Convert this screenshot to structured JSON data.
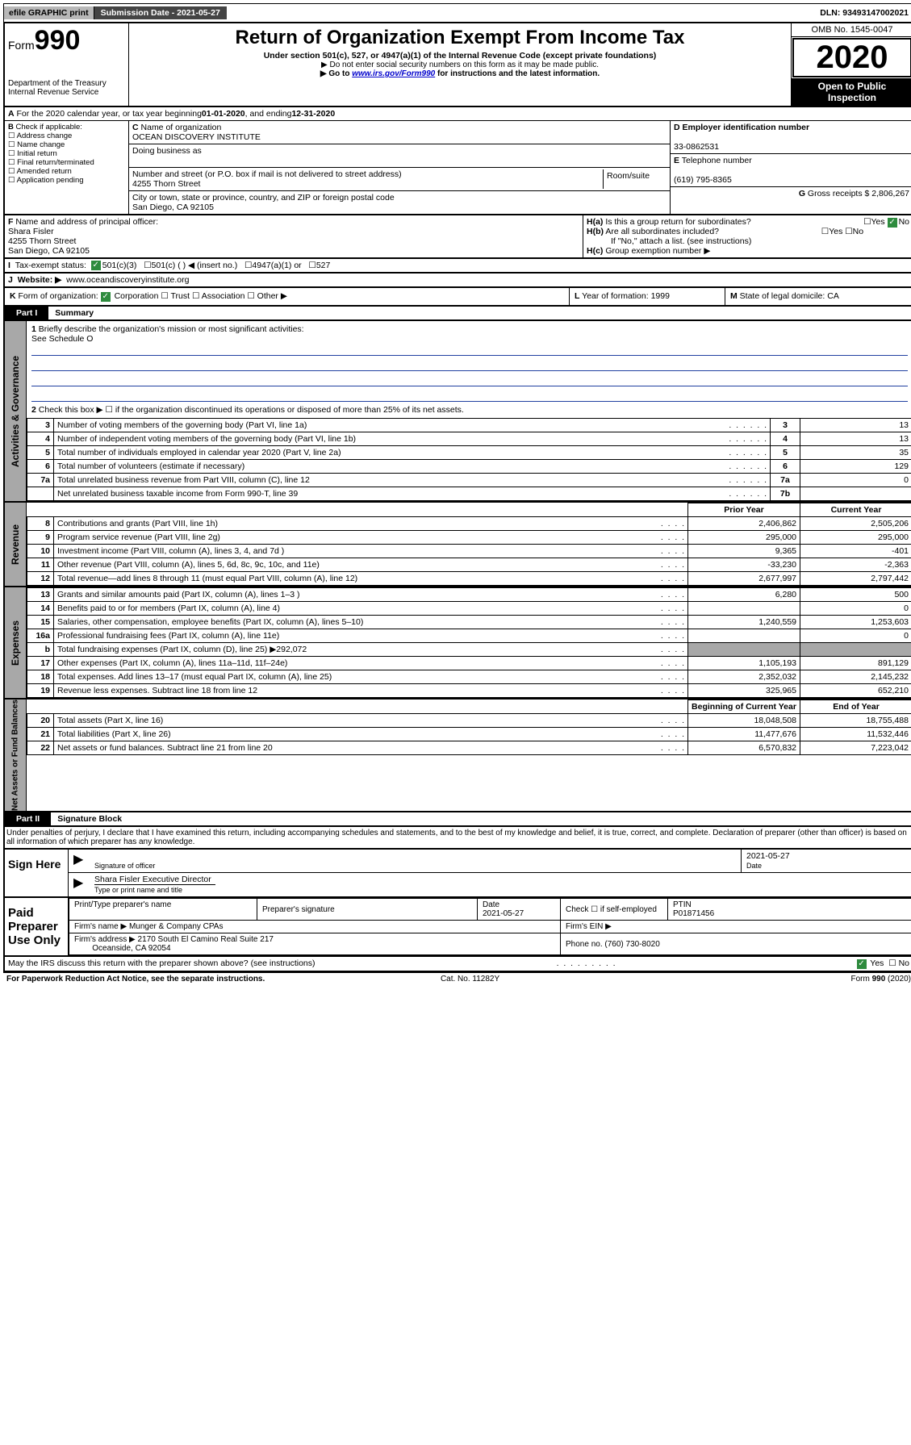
{
  "topbar": {
    "efile": "efile GRAPHIC print",
    "subdate_label": "Submission Date - 2021-05-27",
    "dln": "DLN: 93493147002021"
  },
  "header": {
    "form_label": "Form",
    "form_num": "990",
    "dept": "Department of the Treasury",
    "irs": "Internal Revenue Service",
    "title": "Return of Organization Exempt From Income Tax",
    "subtitle": "Under section 501(c), 527, or 4947(a)(1) of the Internal Revenue Code (except private foundations)",
    "note1": "Do not enter social security numbers on this form as it may be made public.",
    "note2_pre": "Go to ",
    "note2_link": "www.irs.gov/Form990",
    "note2_post": " for instructions and the latest information.",
    "omb": "OMB No. 1545-0047",
    "year": "2020",
    "open": "Open to Public Inspection"
  },
  "rowA": {
    "text_pre": "For the 2020 calendar year, or tax year beginning ",
    "begin": "01-01-2020",
    "mid": " , and ending ",
    "end": "12-31-2020"
  },
  "boxB": {
    "label": "Check if applicable:",
    "items": [
      "Address change",
      "Name change",
      "Initial return",
      "Final return/terminated",
      "Amended return",
      "Application pending"
    ]
  },
  "boxC": {
    "name_lbl": "Name of organization",
    "name": "OCEAN DISCOVERY INSTITUTE",
    "dba_lbl": "Doing business as",
    "addr_lbl": "Number and street (or P.O. box if mail is not delivered to street address)",
    "addr": "4255 Thorn Street",
    "room_lbl": "Room/suite",
    "city_lbl": "City or town, state or province, country, and ZIP or foreign postal code",
    "city": "San Diego, CA  92105"
  },
  "boxD": {
    "lbl": "Employer identification number",
    "val": "33-0862531"
  },
  "boxE": {
    "lbl": "Telephone number",
    "val": "(619) 795-8365"
  },
  "boxG": {
    "lbl": "Gross receipts $",
    "val": "2,806,267"
  },
  "boxF": {
    "lbl": "Name and address of principal officer:",
    "name": "Shara Fisler",
    "addr1": "4255 Thorn Street",
    "addr2": "San Diego, CA  92105"
  },
  "boxH": {
    "a": "Is this a group return for subordinates?",
    "b": "Are all subordinates included?",
    "bnote": "If \"No,\" attach a list. (see instructions)",
    "c": "Group exemption number ▶"
  },
  "rowI": {
    "lbl": "Tax-exempt status:",
    "opt1": "501(c)(3)",
    "opt2": "501(c) (  ) ◀ (insert no.)",
    "opt3": "4947(a)(1) or",
    "opt4": "527"
  },
  "rowJ": {
    "lbl": "Website: ▶",
    "val": "www.oceandiscoveryinstitute.org"
  },
  "rowK": {
    "k1_lbl": "Form of organization:",
    "opts": [
      "Corporation",
      "Trust",
      "Association",
      "Other ▶"
    ],
    "k2_lbl": "Year of formation:",
    "k2_val": "1999",
    "k3_lbl": "State of legal domicile:",
    "k3_val": "CA"
  },
  "part1": {
    "tab": "Part I",
    "title": "Summary",
    "q1": "Briefly describe the organization's mission or most significant activities:",
    "q1a": "See Schedule O",
    "q2": "Check this box ▶ ☐ if the organization discontinued its operations or disposed of more than 25% of its net assets.",
    "side_gov": "Activities & Governance",
    "side_rev": "Revenue",
    "side_exp": "Expenses",
    "side_net": "Net Assets or Fund Balances",
    "col_prior": "Prior Year",
    "col_curr": "Current Year",
    "col_beg": "Beginning of Current Year",
    "col_end": "End of Year",
    "rows_gov": [
      {
        "n": "3",
        "d": "Number of voting members of the governing body (Part VI, line 1a)",
        "ln": "3",
        "v": "13"
      },
      {
        "n": "4",
        "d": "Number of independent voting members of the governing body (Part VI, line 1b)",
        "ln": "4",
        "v": "13"
      },
      {
        "n": "5",
        "d": "Total number of individuals employed in calendar year 2020 (Part V, line 2a)",
        "ln": "5",
        "v": "35"
      },
      {
        "n": "6",
        "d": "Total number of volunteers (estimate if necessary)",
        "ln": "6",
        "v": "129"
      },
      {
        "n": "7a",
        "d": "Total unrelated business revenue from Part VIII, column (C), line 12",
        "ln": "7a",
        "v": "0"
      },
      {
        "n": "",
        "d": "Net unrelated business taxable income from Form 990-T, line 39",
        "ln": "7b",
        "v": ""
      }
    ],
    "rows_rev": [
      {
        "n": "8",
        "d": "Contributions and grants (Part VIII, line 1h)",
        "p": "2,406,862",
        "c": "2,505,206"
      },
      {
        "n": "9",
        "d": "Program service revenue (Part VIII, line 2g)",
        "p": "295,000",
        "c": "295,000"
      },
      {
        "n": "10",
        "d": "Investment income (Part VIII, column (A), lines 3, 4, and 7d )",
        "p": "9,365",
        "c": "-401"
      },
      {
        "n": "11",
        "d": "Other revenue (Part VIII, column (A), lines 5, 6d, 8c, 9c, 10c, and 11e)",
        "p": "-33,230",
        "c": "-2,363"
      },
      {
        "n": "12",
        "d": "Total revenue—add lines 8 through 11 (must equal Part VIII, column (A), line 12)",
        "p": "2,677,997",
        "c": "2,797,442"
      }
    ],
    "rows_exp": [
      {
        "n": "13",
        "d": "Grants and similar amounts paid (Part IX, column (A), lines 1–3 )",
        "p": "6,280",
        "c": "500"
      },
      {
        "n": "14",
        "d": "Benefits paid to or for members (Part IX, column (A), line 4)",
        "p": "",
        "c": "0"
      },
      {
        "n": "15",
        "d": "Salaries, other compensation, employee benefits (Part IX, column (A), lines 5–10)",
        "p": "1,240,559",
        "c": "1,253,603"
      },
      {
        "n": "16a",
        "d": "Professional fundraising fees (Part IX, column (A), line 11e)",
        "p": "",
        "c": "0"
      },
      {
        "n": "b",
        "d": "Total fundraising expenses (Part IX, column (D), line 25) ▶292,072",
        "p": "—",
        "c": "—"
      },
      {
        "n": "17",
        "d": "Other expenses (Part IX, column (A), lines 11a–11d, 11f–24e)",
        "p": "1,105,193",
        "c": "891,129"
      },
      {
        "n": "18",
        "d": "Total expenses. Add lines 13–17 (must equal Part IX, column (A), line 25)",
        "p": "2,352,032",
        "c": "2,145,232"
      },
      {
        "n": "19",
        "d": "Revenue less expenses. Subtract line 18 from line 12",
        "p": "325,965",
        "c": "652,210"
      }
    ],
    "rows_net": [
      {
        "n": "20",
        "d": "Total assets (Part X, line 16)",
        "p": "18,048,508",
        "c": "18,755,488"
      },
      {
        "n": "21",
        "d": "Total liabilities (Part X, line 26)",
        "p": "11,477,676",
        "c": "11,532,446"
      },
      {
        "n": "22",
        "d": "Net assets or fund balances. Subtract line 21 from line 20",
        "p": "6,570,832",
        "c": "7,223,042"
      }
    ]
  },
  "part2": {
    "tab": "Part II",
    "title": "Signature Block",
    "decl": "Under penalties of perjury, I declare that I have examined this return, including accompanying schedules and statements, and to the best of my knowledge and belief, it is true, correct, and complete. Declaration of preparer (other than officer) is based on all information of which preparer has any knowledge.",
    "sign_here": "Sign Here",
    "sig_officer": "Signature of officer",
    "date": "Date",
    "date_v": "2021-05-27",
    "name_title": "Shara Fisler Executive Director",
    "type_name": "Type or print name and title",
    "paid": "Paid Preparer Use Only",
    "prep_name_lbl": "Print/Type preparer's name",
    "prep_sig_lbl": "Preparer's signature",
    "prep_date_lbl": "Date",
    "prep_date": "2021-05-27",
    "check_lbl": "Check ☐ if self-employed",
    "ptin_lbl": "PTIN",
    "ptin": "P01871456",
    "firm_name_lbl": "Firm's name   ▶",
    "firm_name": "Munger & Company CPAs",
    "firm_ein_lbl": "Firm's EIN ▶",
    "firm_addr_lbl": "Firm's address ▶",
    "firm_addr": "2170 South El Camino Real Suite 217",
    "firm_city": "Oceanside, CA  92054",
    "phone_lbl": "Phone no.",
    "phone": "(760) 730-8020",
    "discuss": "May the IRS discuss this return with the preparer shown above? (see instructions)"
  },
  "footer": {
    "pra": "For Paperwork Reduction Act Notice, see the separate instructions.",
    "cat": "Cat. No. 11282Y",
    "form": "Form 990 (2020)"
  }
}
